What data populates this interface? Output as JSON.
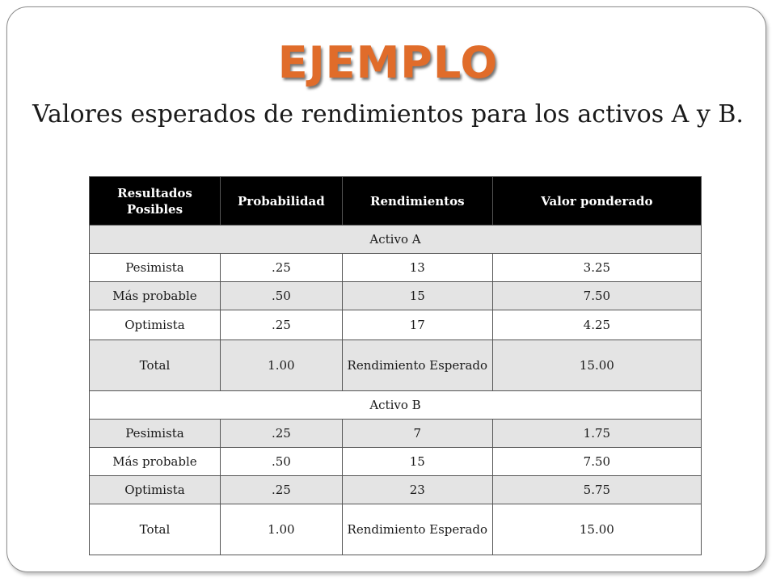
{
  "title": "EJEMPLO",
  "subtitle": "Valores esperados de rendimientos para los activos A y B.",
  "table": {
    "headers": [
      "Resultados Posibles",
      "Probabilidad",
      "Rendimientos",
      "Valor ponderado"
    ],
    "sections": [
      {
        "label": "Activo A",
        "rows": [
          [
            "Pesimista",
            ".25",
            "13",
            "3.25"
          ],
          [
            "Más probable",
            ".50",
            "15",
            "7.50"
          ],
          [
            "Optimista",
            ".25",
            "17",
            "4.25"
          ]
        ],
        "total": [
          "Total",
          "1.00",
          "Rendimiento Esperado",
          "15.00"
        ]
      },
      {
        "label": "Activo B",
        "rows": [
          [
            "Pesimista",
            ".25",
            "7",
            "1.75"
          ],
          [
            "Más probable",
            ".50",
            "15",
            "7.50"
          ],
          [
            "Optimista",
            ".25",
            "23",
            "5.75"
          ]
        ],
        "total": [
          "Total",
          "1.00",
          "Rendimiento Esperado",
          "15.00"
        ]
      }
    ]
  }
}
